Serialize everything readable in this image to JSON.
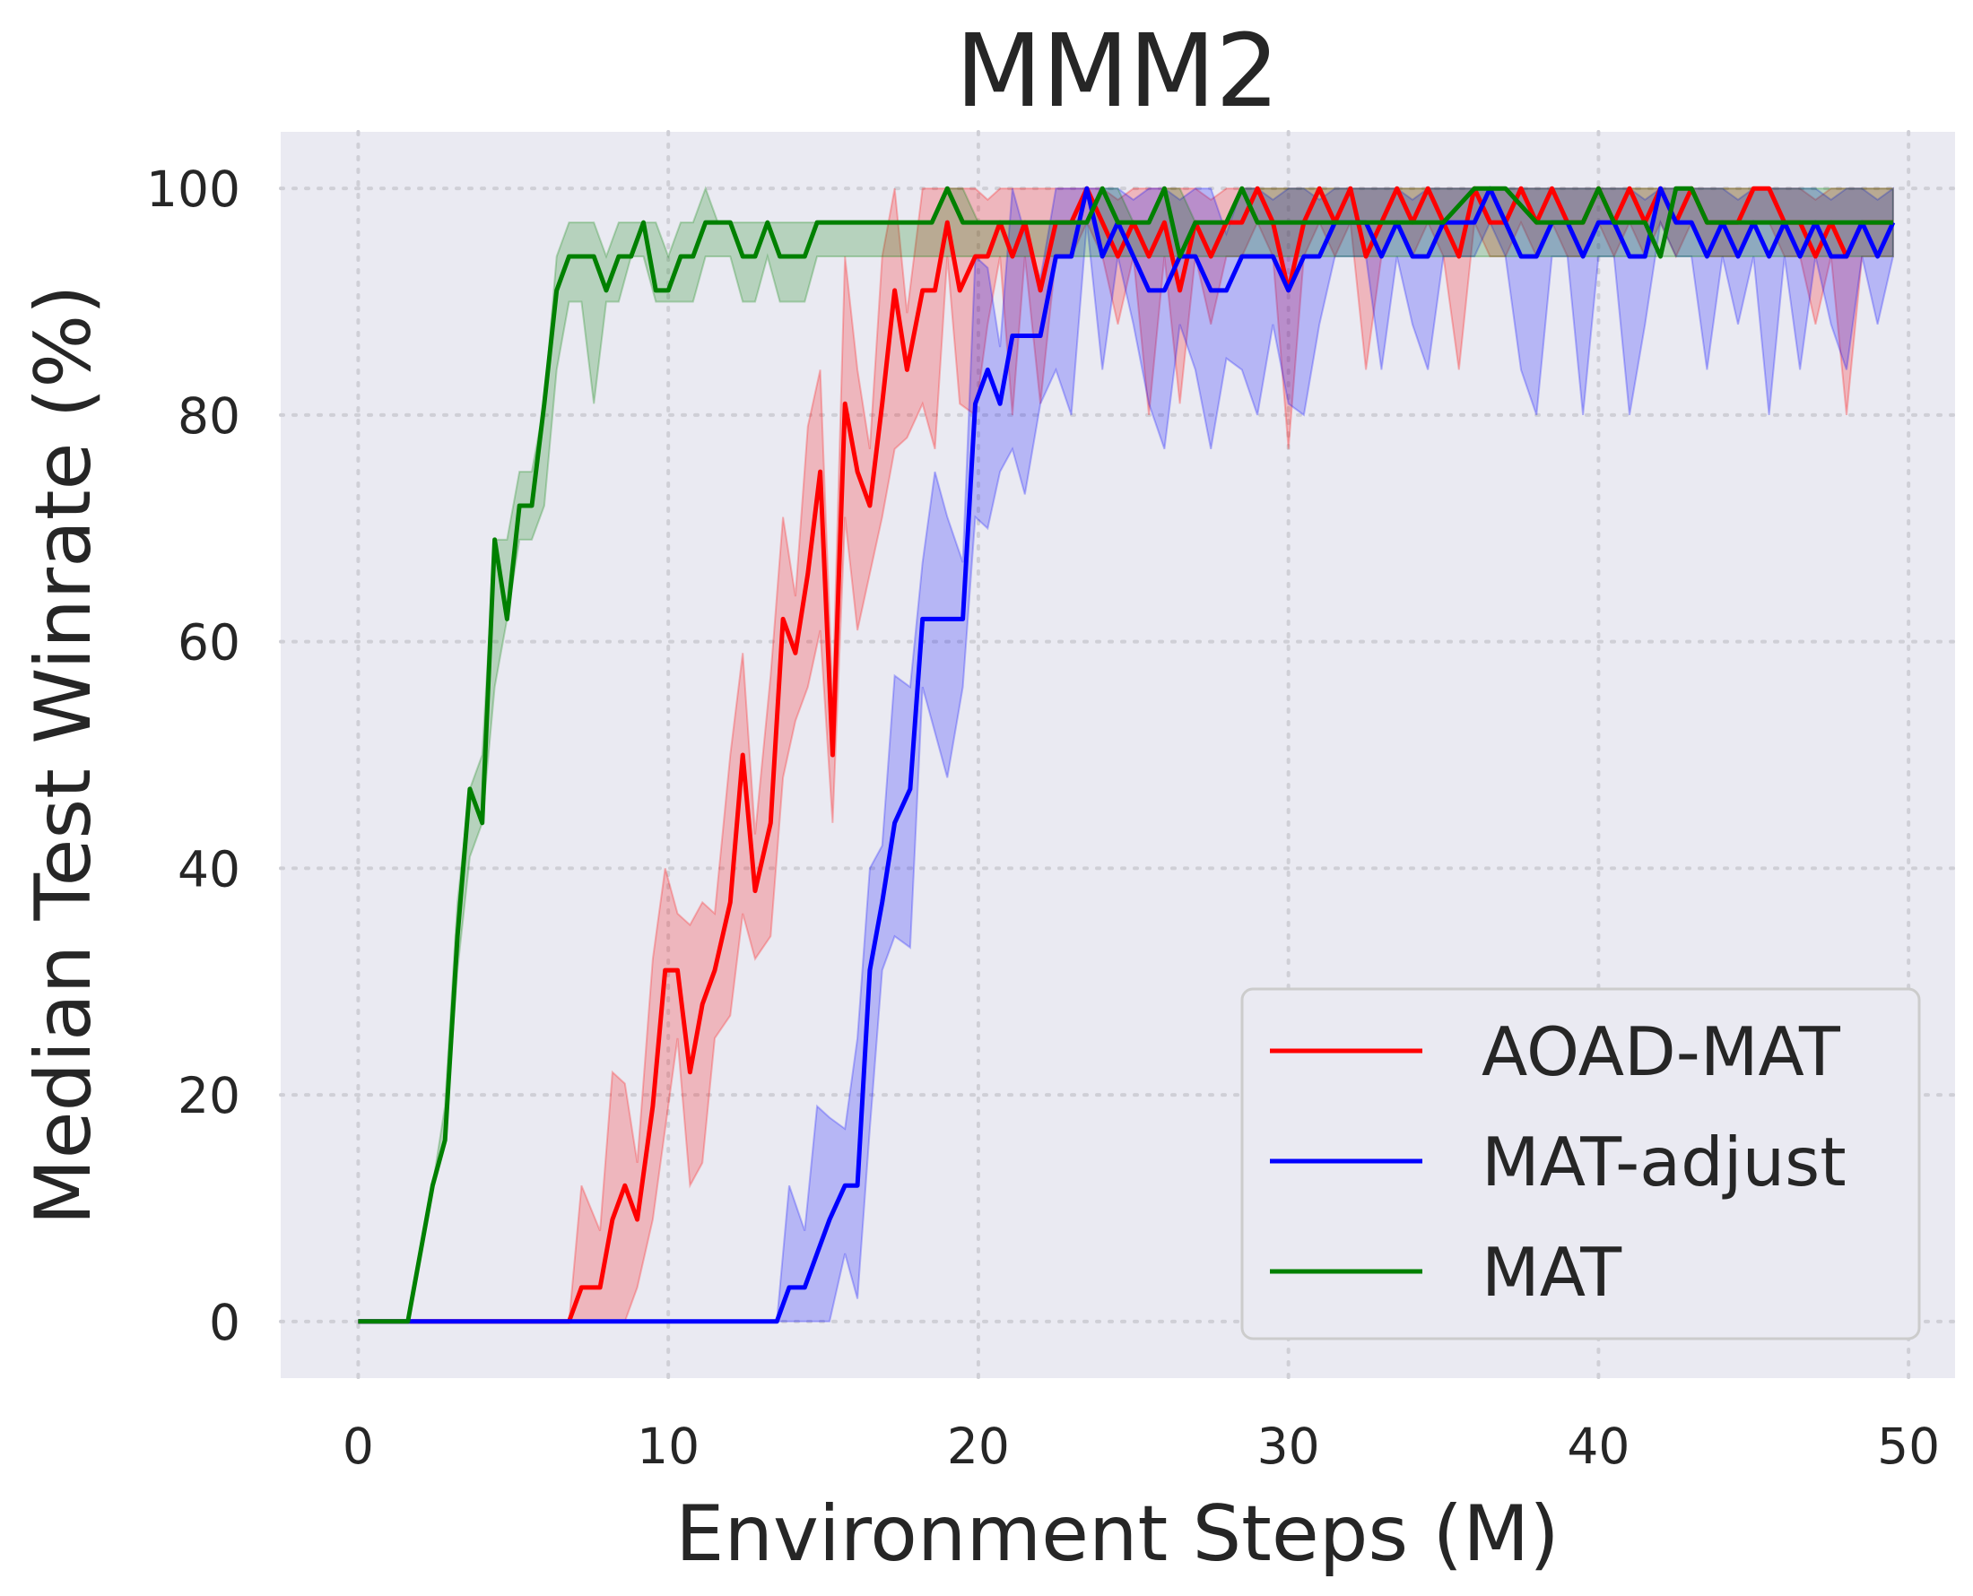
{
  "chart_data": {
    "type": "line",
    "title": "MMM2",
    "xlabel": "Environment Steps (M)",
    "ylabel": "Median Test Winrate (%)",
    "xlim": [
      -2.5,
      51.5
    ],
    "ylim": [
      -5,
      105
    ],
    "xticks": [
      0,
      10,
      20,
      30,
      40,
      50
    ],
    "yticks": [
      0,
      20,
      40,
      60,
      80,
      100
    ],
    "grid": true,
    "legend_position": "lower-right",
    "series": [
      {
        "name": "AOAD-MAT",
        "color": "#ff0000",
        "x": [
          0,
          1,
          2,
          3,
          4,
          5,
          6,
          6.8,
          7.2,
          7.8,
          8.2,
          8.6,
          9,
          9.5,
          9.9,
          10.3,
          10.7,
          11.1,
          11.5,
          12,
          12.4,
          12.8,
          13.3,
          13.7,
          14.1,
          14.5,
          14.9,
          15.3,
          15.7,
          16.1,
          16.5,
          16.9,
          17.3,
          17.7,
          18.2,
          18.6,
          19,
          19.4,
          19.9,
          20.3,
          20.7,
          21.1,
          21.5,
          22,
          22.5,
          23,
          23.5,
          24,
          24.5,
          25,
          25.5,
          26,
          26.5,
          27,
          27.5,
          28,
          28.5,
          29,
          29.5,
          30,
          30.5,
          31,
          31.5,
          32,
          32.5,
          33,
          33.5,
          34,
          34.5,
          35,
          35.5,
          36,
          36.5,
          37,
          37.5,
          38,
          38.5,
          39,
          39.5,
          40,
          40.5,
          41,
          41.5,
          42,
          42.5,
          43,
          43.5,
          44,
          44.5,
          45,
          45.5,
          46,
          46.5,
          47,
          47.5,
          48,
          48.5,
          49,
          49.5
        ],
        "y": [
          0,
          0,
          0,
          0,
          0,
          0,
          0,
          0,
          3,
          3,
          9,
          12,
          9,
          19,
          31,
          31,
          22,
          28,
          31,
          37,
          50,
          38,
          44,
          62,
          59,
          66,
          75,
          50,
          81,
          75,
          72,
          81,
          91,
          84,
          91,
          91,
          97,
          91,
          94,
          94,
          97,
          94,
          97,
          91,
          97,
          97,
          100,
          97,
          94,
          97,
          94,
          97,
          91,
          97,
          94,
          97,
          97,
          100,
          97,
          91,
          97,
          100,
          97,
          100,
          94,
          97,
          100,
          97,
          100,
          97,
          94,
          100,
          97,
          97,
          100,
          97,
          100,
          97,
          97,
          100,
          97,
          100,
          97,
          100,
          97,
          100,
          97,
          97,
          97,
          100,
          100,
          97,
          97,
          94,
          97,
          94,
          97,
          97,
          97
        ]
      },
      {
        "name": "MAT-adjust",
        "color": "#0000ff",
        "x": [
          0,
          2,
          4,
          6,
          8,
          10,
          12,
          13.5,
          13.9,
          14.4,
          14.8,
          15.2,
          15.7,
          16.1,
          16.5,
          16.9,
          17.3,
          17.8,
          18.2,
          18.6,
          19,
          19.5,
          19.9,
          20.3,
          20.7,
          21.1,
          21.5,
          22,
          22.5,
          23,
          23.5,
          24,
          24.5,
          25,
          25.5,
          26,
          26.5,
          27,
          27.5,
          28,
          28.5,
          29,
          29.5,
          30,
          30.5,
          31,
          31.5,
          32,
          32.5,
          33,
          33.5,
          34,
          34.5,
          35,
          35.5,
          36,
          36.5,
          37,
          37.5,
          38,
          38.5,
          39,
          39.5,
          40,
          40.5,
          41,
          41.5,
          42,
          42.5,
          43,
          43.5,
          44,
          44.5,
          45,
          45.5,
          46,
          46.5,
          47,
          47.5,
          48,
          48.5,
          49,
          49.5
        ],
        "y": [
          0,
          0,
          0,
          0,
          0,
          0,
          0,
          0,
          3,
          3,
          6,
          9,
          12,
          12,
          31,
          37,
          44,
          47,
          62,
          62,
          62,
          62,
          81,
          84,
          81,
          87,
          87,
          87,
          94,
          94,
          100,
          94,
          97,
          94,
          91,
          91,
          94,
          94,
          91,
          91,
          94,
          94,
          94,
          91,
          94,
          94,
          97,
          97,
          97,
          94,
          97,
          94,
          94,
          97,
          97,
          97,
          100,
          97,
          94,
          94,
          97,
          97,
          94,
          97,
          97,
          94,
          94,
          100,
          97,
          97,
          94,
          97,
          94,
          97,
          94,
          97,
          94,
          97,
          94,
          94,
          97,
          94,
          97
        ]
      },
      {
        "name": "MAT",
        "color": "#008000",
        "x": [
          0,
          0.8,
          1.6,
          2.4,
          2.8,
          3.2,
          3.6,
          4,
          4.4,
          4.8,
          5.2,
          5.6,
          6,
          6.4,
          6.8,
          7.2,
          7.6,
          8,
          8.4,
          8.8,
          9.2,
          9.6,
          10,
          10.4,
          10.8,
          11.2,
          11.6,
          12,
          12.4,
          12.8,
          13.2,
          13.6,
          14,
          14.4,
          14.8,
          15.2,
          15.6,
          16,
          17,
          18,
          18.5,
          19,
          19.5,
          20,
          21,
          22,
          22.5,
          23,
          23.5,
          24,
          24.5,
          25,
          25.5,
          26,
          26.5,
          27,
          27.5,
          28,
          28.5,
          29,
          30,
          31,
          32,
          33,
          34,
          35,
          36,
          37,
          38,
          39,
          39.5,
          40,
          40.5,
          41,
          41.5,
          42,
          42.5,
          43,
          43.5,
          44,
          44.5,
          45,
          45.5,
          46,
          46.5,
          47,
          47.5,
          48,
          48.5,
          49,
          49.5
        ],
        "y": [
          0,
          0,
          0,
          12,
          16,
          34,
          47,
          44,
          69,
          62,
          72,
          72,
          81,
          91,
          94,
          94,
          94,
          91,
          94,
          94,
          97,
          91,
          91,
          94,
          94,
          97,
          97,
          97,
          94,
          94,
          97,
          94,
          94,
          94,
          97,
          97,
          97,
          97,
          97,
          97,
          97,
          100,
          97,
          97,
          97,
          97,
          97,
          97,
          97,
          100,
          97,
          97,
          97,
          100,
          94,
          97,
          97,
          97,
          100,
          97,
          97,
          97,
          97,
          97,
          97,
          97,
          100,
          100,
          97,
          97,
          97,
          100,
          97,
          97,
          97,
          94,
          100,
          100,
          97,
          97,
          97,
          97,
          97,
          97,
          97,
          97,
          97,
          97,
          97,
          97,
          97
        ],
        "band_low": [
          0,
          0,
          0,
          12,
          16,
          31,
          41,
          44,
          56,
          62,
          69,
          69,
          72,
          84,
          90,
          90,
          81,
          90,
          90,
          94,
          94,
          90,
          90,
          90,
          90,
          94,
          94,
          94,
          90,
          90,
          94,
          90,
          90,
          90,
          94,
          94,
          94,
          94,
          94,
          94,
          94,
          94,
          94,
          94,
          94,
          94,
          94,
          94,
          94,
          94,
          94,
          94,
          94,
          94,
          94,
          94,
          94,
          94,
          94,
          94,
          94,
          94,
          94,
          94,
          94,
          94,
          94,
          94,
          94,
          94,
          94,
          94,
          94,
          94,
          94,
          94,
          94,
          94,
          94,
          94,
          94,
          94,
          94,
          94,
          94,
          94,
          94,
          94,
          94,
          94,
          94
        ],
        "band_high": [
          0,
          0,
          0,
          12,
          19,
          37,
          47,
          50,
          69,
          69,
          75,
          75,
          81,
          94,
          97,
          97,
          97,
          94,
          97,
          97,
          97,
          97,
          94,
          97,
          97,
          100,
          97,
          97,
          97,
          97,
          97,
          97,
          97,
          97,
          97,
          97,
          97,
          97,
          97,
          97,
          97,
          100,
          100,
          97,
          97,
          97,
          97,
          97,
          97,
          100,
          100,
          97,
          97,
          100,
          100,
          97,
          97,
          97,
          100,
          100,
          100,
          100,
          100,
          100,
          100,
          100,
          100,
          100,
          100,
          100,
          100,
          100,
          100,
          100,
          100,
          100,
          100,
          100,
          100,
          100,
          100,
          100,
          100,
          100,
          100,
          100,
          100,
          100,
          100,
          100,
          100
        ]
      }
    ]
  }
}
